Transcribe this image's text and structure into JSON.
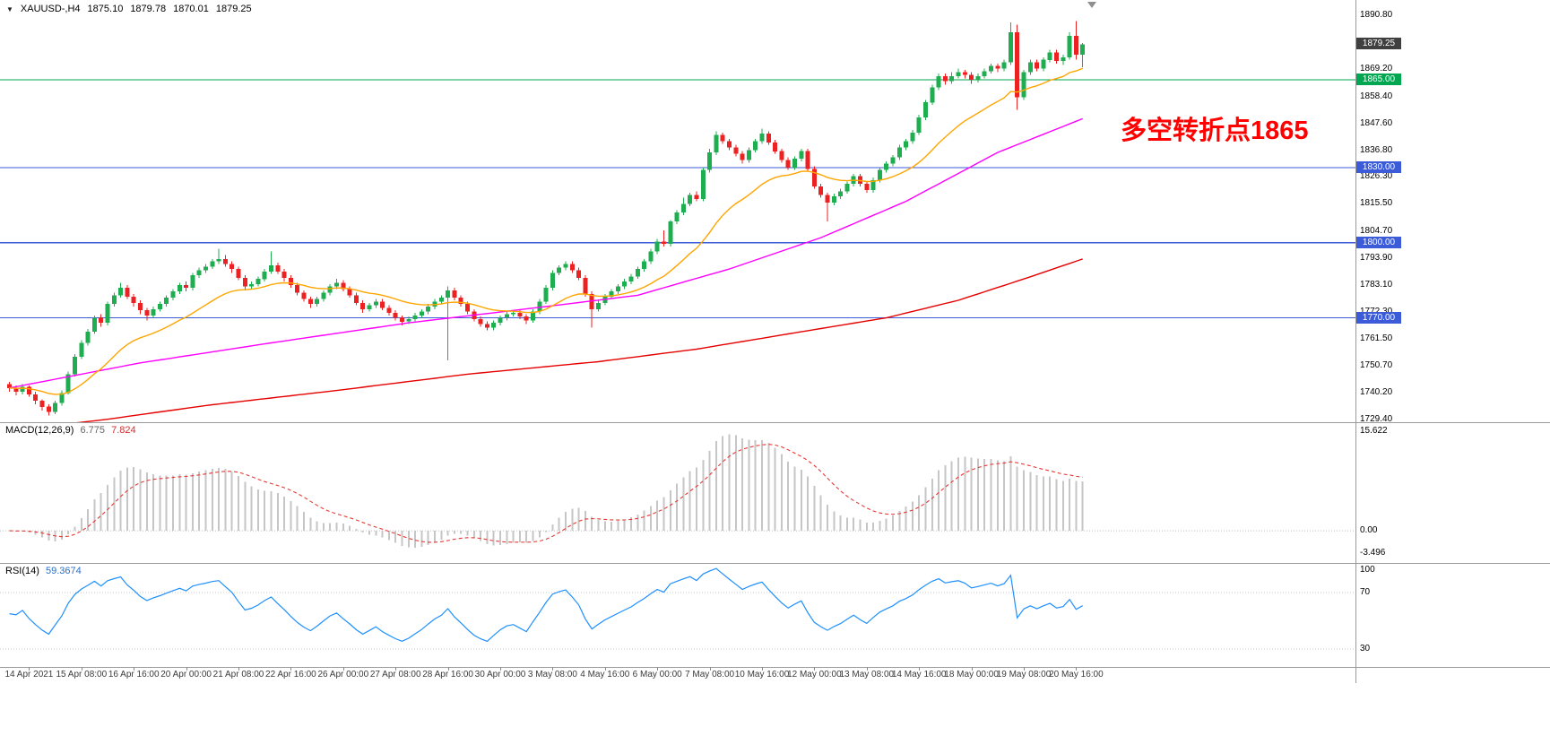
{
  "info_bar": {
    "symbol": "XAUUSD-,H4",
    "open": "1875.10",
    "high": "1879.78",
    "low": "1870.01",
    "close": "1879.25"
  },
  "colors": {
    "background": "#FFFFFF",
    "candle_up": "#1EAE4F",
    "candle_down": "#EC2121",
    "ma_fast": "#FFA500",
    "ma_mid": "#FF00FF",
    "ma_slow": "#E60000",
    "hline_blue": "#3B5BD9",
    "hline_green": "#00A650",
    "macd_bar": "#C6C6C6",
    "macd_signal": "#E53935",
    "rsi_line": "#1E90FF",
    "current_badge_bg": "#404040",
    "axis_text": "#000000",
    "time_text": "#3A3A3A",
    "separator": "#9A9A9A",
    "annotation_red": "#FF0000"
  },
  "chart_data": {
    "type": "candlestick",
    "title": "XAUUSD-,H4",
    "symbol": "XAUUSD-",
    "timeframe": "H4",
    "current_price": 1879.25,
    "annotation": {
      "text": "多空转折点1865",
      "color": "#FF0000"
    },
    "y_axis": {
      "min": 1729.4,
      "max": 1890.8,
      "ticks": [
        "1890.80",
        "1869.20",
        "1858.40",
        "1847.60",
        "1836.80",
        "1826.30",
        "1815.50",
        "1804.70",
        "1793.90",
        "1783.10",
        "1772.30",
        "1761.50",
        "1750.70",
        "1740.20",
        "1729.40"
      ]
    },
    "x_axis": {
      "first_label_candle_index": 3,
      "candles_per_label": 8,
      "labels": [
        "14 Apr 2021",
        "15 Apr 08:00",
        "16 Apr 16:00",
        "20 Apr 00:00",
        "21 Apr 08:00",
        "22 Apr 16:00",
        "26 Apr 00:00",
        "27 Apr 08:00",
        "28 Apr 16:00",
        "30 Apr 00:00",
        "3 May 08:00",
        "4 May 16:00",
        "6 May 00:00",
        "7 May 08:00",
        "10 May 16:00",
        "12 May 00:00",
        "13 May 08:00",
        "14 May 16:00",
        "18 May 00:00",
        "19 May 08:00",
        "20 May 16:00"
      ]
    },
    "horizontal_lines": [
      {
        "price": 1865.0,
        "label": "1865.00",
        "color": "#00A650"
      },
      {
        "price": 1830.0,
        "label": "1830.00",
        "color": "#3B5BD9"
      },
      {
        "price": 1800.0,
        "label": "1800.00",
        "color": "#3B5BD9"
      },
      {
        "price": 1770.0,
        "label": "1770.00",
        "color": "#3B5BD9"
      }
    ],
    "moving_averages": {
      "fast": {
        "method": "ema",
        "period": 20,
        "color": "#FFA500"
      },
      "mid": {
        "color": "#FF00FF",
        "points": [
          [
            0,
            1742
          ],
          [
            20,
            1752
          ],
          [
            40,
            1760
          ],
          [
            61,
            1768
          ],
          [
            82,
            1774.5
          ],
          [
            96,
            1779
          ],
          [
            110,
            1789.5
          ],
          [
            124,
            1802
          ],
          [
            137,
            1816.5
          ],
          [
            151,
            1836
          ],
          [
            164,
            1849.5
          ]
        ]
      },
      "slow": {
        "color": "#E60000",
        "points": [
          [
            0,
            1725
          ],
          [
            15,
            1729.5
          ],
          [
            30,
            1735
          ],
          [
            50,
            1741
          ],
          [
            70,
            1747.5
          ],
          [
            90,
            1752.5
          ],
          [
            105,
            1757.5
          ],
          [
            120,
            1764
          ],
          [
            134,
            1770
          ],
          [
            145,
            1777
          ],
          [
            155,
            1785.5
          ],
          [
            164,
            1793.5
          ]
        ]
      }
    },
    "indicators": [
      {
        "type": "macd",
        "label": "MACD(12,26,9)",
        "params": [
          12,
          26,
          9
        ],
        "values": [
          6.775,
          7.824
        ],
        "scale": {
          "max": 15.622,
          "min": -3.496,
          "ticks": [
            "15.622",
            "0.00",
            "-3.496"
          ]
        }
      },
      {
        "type": "rsi",
        "label": "RSI(14)",
        "period": 14,
        "value": 59.3674,
        "levels": [
          70,
          30
        ],
        "scale_ticks": [
          "100",
          "70",
          "30"
        ]
      }
    ],
    "ohlc": [
      [
        1743.5,
        1744.5,
        1740.5,
        1742.0
      ],
      [
        1742.0,
        1743.0,
        1739.0,
        1740.5
      ],
      [
        1740.5,
        1743.5,
        1739.5,
        1742.5
      ],
      [
        1742.5,
        1743.0,
        1738.5,
        1739.5
      ],
      [
        1739.5,
        1740.5,
        1735.5,
        1737.0
      ],
      [
        1737.0,
        1737.5,
        1733.0,
        1734.5
      ],
      [
        1734.5,
        1735.5,
        1731.0,
        1732.5
      ],
      [
        1732.5,
        1737.0,
        1731.5,
        1736.0
      ],
      [
        1736.0,
        1741.0,
        1735.0,
        1740.0
      ],
      [
        1740.0,
        1748.5,
        1739.5,
        1747.5
      ],
      [
        1747.5,
        1755.5,
        1746.5,
        1754.5
      ],
      [
        1754.5,
        1761.0,
        1753.5,
        1760.0
      ],
      [
        1760.0,
        1765.5,
        1759.0,
        1764.5
      ],
      [
        1764.5,
        1771.0,
        1763.5,
        1770.0
      ],
      [
        1770.0,
        1771.5,
        1766.5,
        1768.0
      ],
      [
        1768.0,
        1776.5,
        1767.0,
        1775.5
      ],
      [
        1775.5,
        1780.0,
        1774.5,
        1779.0
      ],
      [
        1779.0,
        1784.0,
        1778.0,
        1782.0
      ],
      [
        1782.0,
        1783.0,
        1777.5,
        1778.5
      ],
      [
        1778.5,
        1779.5,
        1774.5,
        1776.0
      ],
      [
        1776.0,
        1777.0,
        1771.5,
        1773.0
      ],
      [
        1773.0,
        1774.0,
        1769.0,
        1771.0
      ],
      [
        1771.0,
        1774.5,
        1770.0,
        1773.5
      ],
      [
        1773.5,
        1776.5,
        1772.5,
        1775.5
      ],
      [
        1775.5,
        1779.0,
        1774.5,
        1778.0
      ],
      [
        1778.0,
        1781.5,
        1777.0,
        1780.5
      ],
      [
        1780.5,
        1784.0,
        1779.5,
        1783.0
      ],
      [
        1783.0,
        1784.5,
        1780.5,
        1782.0
      ],
      [
        1782.0,
        1788.0,
        1781.0,
        1787.0
      ],
      [
        1787.0,
        1790.0,
        1786.0,
        1789.0
      ],
      [
        1789.0,
        1791.5,
        1788.0,
        1790.5
      ],
      [
        1790.5,
        1793.5,
        1789.5,
        1792.5
      ],
      [
        1792.5,
        1797.5,
        1791.5,
        1793.5
      ],
      [
        1793.5,
        1795.0,
        1790.5,
        1791.5
      ],
      [
        1791.5,
        1792.5,
        1788.0,
        1789.5
      ],
      [
        1789.5,
        1790.5,
        1785.0,
        1786.0
      ],
      [
        1786.0,
        1787.0,
        1781.0,
        1782.5
      ],
      [
        1782.5,
        1784.5,
        1781.5,
        1783.5
      ],
      [
        1783.5,
        1786.5,
        1782.5,
        1785.5
      ],
      [
        1785.5,
        1789.5,
        1784.5,
        1788.5
      ],
      [
        1788.5,
        1796.5,
        1787.5,
        1791.0
      ],
      [
        1791.0,
        1792.0,
        1787.5,
        1788.5
      ],
      [
        1788.5,
        1789.5,
        1784.5,
        1786.0
      ],
      [
        1786.0,
        1787.0,
        1782.0,
        1783.0
      ],
      [
        1783.0,
        1784.0,
        1779.0,
        1780.0
      ],
      [
        1780.0,
        1781.0,
        1776.5,
        1777.5
      ],
      [
        1777.5,
        1778.5,
        1774.0,
        1775.5
      ],
      [
        1775.5,
        1778.5,
        1774.5,
        1777.5
      ],
      [
        1777.5,
        1781.0,
        1776.5,
        1780.0
      ],
      [
        1780.0,
        1783.5,
        1779.0,
        1782.5
      ],
      [
        1782.5,
        1785.5,
        1781.5,
        1784.0
      ],
      [
        1784.0,
        1785.0,
        1780.5,
        1781.5
      ],
      [
        1781.5,
        1782.5,
        1778.0,
        1779.0
      ],
      [
        1779.0,
        1780.0,
        1775.0,
        1776.0
      ],
      [
        1776.0,
        1777.0,
        1772.0,
        1773.5
      ],
      [
        1773.5,
        1776.0,
        1772.5,
        1775.0
      ],
      [
        1775.0,
        1777.5,
        1774.0,
        1776.5
      ],
      [
        1776.5,
        1777.5,
        1773.0,
        1774.0
      ],
      [
        1774.0,
        1775.0,
        1771.0,
        1772.0
      ],
      [
        1772.0,
        1773.0,
        1769.0,
        1770.0
      ],
      [
        1770.0,
        1771.0,
        1767.0,
        1768.5
      ],
      [
        1768.5,
        1770.5,
        1767.5,
        1769.5
      ],
      [
        1769.5,
        1772.0,
        1768.5,
        1771.0
      ],
      [
        1771.0,
        1773.5,
        1770.0,
        1772.5
      ],
      [
        1772.5,
        1775.5,
        1771.5,
        1774.5
      ],
      [
        1774.5,
        1777.5,
        1773.5,
        1776.5
      ],
      [
        1776.5,
        1779.0,
        1775.5,
        1778.0
      ],
      [
        1778.0,
        1782.5,
        1753.0,
        1781.0
      ],
      [
        1781.0,
        1782.0,
        1777.0,
        1778.0
      ],
      [
        1778.0,
        1779.0,
        1774.5,
        1775.5
      ],
      [
        1775.5,
        1776.5,
        1771.5,
        1772.5
      ],
      [
        1772.5,
        1773.5,
        1768.5,
        1769.5
      ],
      [
        1769.5,
        1770.5,
        1766.5,
        1767.5
      ],
      [
        1767.5,
        1768.5,
        1765.0,
        1766.0
      ],
      [
        1766.0,
        1769.0,
        1765.0,
        1768.0
      ],
      [
        1768.0,
        1771.0,
        1767.0,
        1770.0
      ],
      [
        1770.0,
        1772.5,
        1769.0,
        1771.5
      ],
      [
        1771.5,
        1773.0,
        1770.5,
        1772.0
      ],
      [
        1772.0,
        1773.0,
        1769.5,
        1770.5
      ],
      [
        1770.5,
        1771.5,
        1767.5,
        1769.0
      ],
      [
        1769.0,
        1773.5,
        1768.0,
        1772.5
      ],
      [
        1772.5,
        1777.5,
        1771.5,
        1776.5
      ],
      [
        1776.5,
        1783.0,
        1775.5,
        1782.0
      ],
      [
        1782.0,
        1789.0,
        1781.0,
        1788.0
      ],
      [
        1788.0,
        1791.0,
        1787.0,
        1790.0
      ],
      [
        1790.0,
        1792.5,
        1789.0,
        1791.5
      ],
      [
        1791.5,
        1792.5,
        1788.0,
        1789.0
      ],
      [
        1789.0,
        1790.0,
        1785.0,
        1786.0
      ],
      [
        1786.0,
        1787.0,
        1778.5,
        1779.5
      ],
      [
        1779.5,
        1780.5,
        1766.0,
        1773.5
      ],
      [
        1773.5,
        1777.0,
        1772.5,
        1776.0
      ],
      [
        1776.0,
        1779.5,
        1775.0,
        1778.5
      ],
      [
        1778.5,
        1781.5,
        1777.5,
        1780.5
      ],
      [
        1780.5,
        1783.5,
        1779.5,
        1782.5
      ],
      [
        1782.5,
        1785.5,
        1781.5,
        1784.5
      ],
      [
        1784.5,
        1787.5,
        1783.5,
        1786.5
      ],
      [
        1786.5,
        1790.5,
        1785.5,
        1789.5
      ],
      [
        1789.5,
        1793.5,
        1788.5,
        1792.5
      ],
      [
        1792.5,
        1797.5,
        1791.5,
        1796.5
      ],
      [
        1796.5,
        1801.5,
        1795.5,
        1800.5
      ],
      [
        1800.5,
        1805.0,
        1798.5,
        1799.5
      ],
      [
        1799.5,
        1809.0,
        1798.5,
        1808.5
      ],
      [
        1808.5,
        1813.0,
        1807.5,
        1812.0
      ],
      [
        1812.0,
        1818.0,
        1811.0,
        1815.5
      ],
      [
        1815.5,
        1820.0,
        1814.5,
        1819.0
      ],
      [
        1819.0,
        1820.5,
        1816.5,
        1817.5
      ],
      [
        1817.5,
        1830.0,
        1816.5,
        1829.0
      ],
      [
        1829.0,
        1837.5,
        1828.0,
        1836.0
      ],
      [
        1836.0,
        1844.5,
        1835.0,
        1843.0
      ],
      [
        1843.0,
        1844.0,
        1839.5,
        1840.5
      ],
      [
        1840.5,
        1841.5,
        1837.0,
        1838.0
      ],
      [
        1838.0,
        1839.0,
        1834.5,
        1835.5
      ],
      [
        1835.5,
        1836.5,
        1831.5,
        1833.0
      ],
      [
        1833.0,
        1838.0,
        1832.0,
        1837.0
      ],
      [
        1837.0,
        1841.5,
        1836.0,
        1840.5
      ],
      [
        1840.5,
        1845.5,
        1839.5,
        1843.5
      ],
      [
        1843.5,
        1844.5,
        1839.0,
        1840.0
      ],
      [
        1840.0,
        1841.0,
        1835.5,
        1836.5
      ],
      [
        1836.5,
        1837.5,
        1832.0,
        1833.0
      ],
      [
        1833.0,
        1834.0,
        1829.0,
        1830.0
      ],
      [
        1830.0,
        1834.5,
        1829.0,
        1833.5
      ],
      [
        1833.5,
        1837.5,
        1832.5,
        1836.5
      ],
      [
        1836.5,
        1837.5,
        1828.5,
        1829.5
      ],
      [
        1829.5,
        1830.5,
        1821.5,
        1822.5
      ],
      [
        1822.5,
        1823.5,
        1818.0,
        1819.0
      ],
      [
        1819.0,
        1820.0,
        1808.5,
        1816.0
      ],
      [
        1816.0,
        1819.5,
        1815.0,
        1818.5
      ],
      [
        1818.5,
        1821.5,
        1817.5,
        1820.5
      ],
      [
        1820.5,
        1824.5,
        1819.5,
        1823.5
      ],
      [
        1823.5,
        1827.5,
        1822.5,
        1826.5
      ],
      [
        1826.5,
        1827.5,
        1822.5,
        1823.5
      ],
      [
        1823.5,
        1824.5,
        1820.0,
        1821.0
      ],
      [
        1821.0,
        1826.0,
        1820.0,
        1825.0
      ],
      [
        1825.0,
        1830.0,
        1824.0,
        1829.0
      ],
      [
        1829.0,
        1832.5,
        1828.0,
        1831.5
      ],
      [
        1831.5,
        1835.0,
        1830.5,
        1834.0
      ],
      [
        1834.0,
        1839.0,
        1833.0,
        1838.0
      ],
      [
        1838.0,
        1841.5,
        1837.0,
        1840.5
      ],
      [
        1840.5,
        1845.0,
        1839.5,
        1844.0
      ],
      [
        1844.0,
        1851.0,
        1843.0,
        1850.0
      ],
      [
        1850.0,
        1857.0,
        1849.0,
        1856.0
      ],
      [
        1856.0,
        1863.0,
        1855.0,
        1862.0
      ],
      [
        1862.0,
        1867.5,
        1861.0,
        1866.5
      ],
      [
        1866.5,
        1867.5,
        1863.0,
        1864.5
      ],
      [
        1864.5,
        1868.0,
        1863.5,
        1866.5
      ],
      [
        1866.5,
        1869.5,
        1865.5,
        1868.0
      ],
      [
        1868.0,
        1869.0,
        1865.5,
        1867.0
      ],
      [
        1867.0,
        1868.0,
        1863.5,
        1865.0
      ],
      [
        1865.0,
        1867.5,
        1864.0,
        1866.5
      ],
      [
        1866.5,
        1869.5,
        1865.5,
        1868.5
      ],
      [
        1868.5,
        1871.5,
        1867.5,
        1870.5
      ],
      [
        1870.5,
        1871.5,
        1868.0,
        1869.5
      ],
      [
        1869.5,
        1873.0,
        1868.5,
        1872.0
      ],
      [
        1872.0,
        1888.0,
        1871.0,
        1884.0
      ],
      [
        1884.0,
        1887.0,
        1853.0,
        1858.0
      ],
      [
        1858.0,
        1869.0,
        1857.0,
        1868.0
      ],
      [
        1868.0,
        1873.0,
        1867.0,
        1872.0
      ],
      [
        1872.0,
        1873.0,
        1868.5,
        1869.5
      ],
      [
        1869.5,
        1874.0,
        1868.5,
        1873.0
      ],
      [
        1873.0,
        1877.0,
        1872.0,
        1876.0
      ],
      [
        1876.0,
        1877.0,
        1871.5,
        1872.5
      ],
      [
        1872.5,
        1875.0,
        1871.0,
        1874.0
      ],
      [
        1874.0,
        1884.0,
        1873.0,
        1882.5
      ],
      [
        1882.5,
        1888.5,
        1873.0,
        1875.0
      ],
      [
        1875.1,
        1879.78,
        1870.01,
        1879.25
      ]
    ]
  }
}
